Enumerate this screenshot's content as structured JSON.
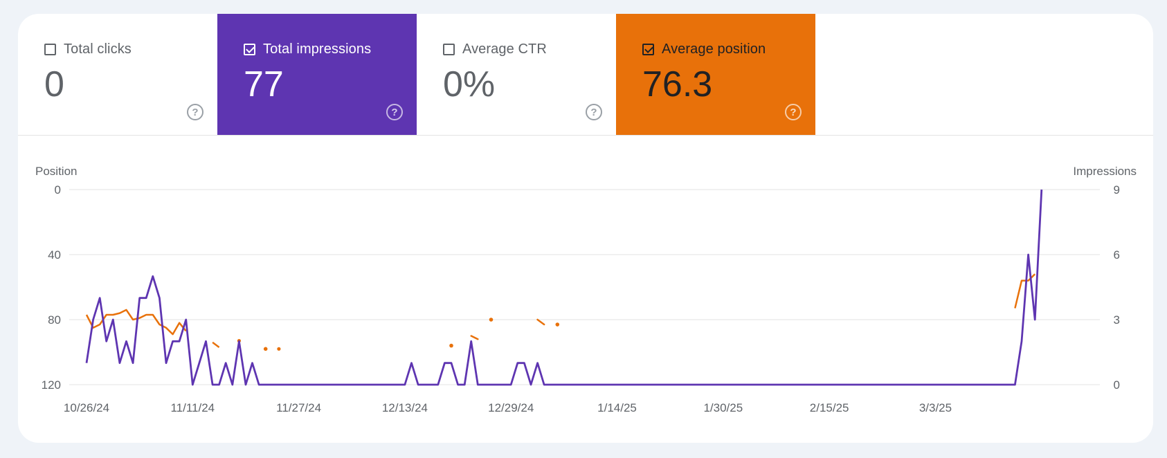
{
  "metrics": {
    "clicks": {
      "label": "Total clicks",
      "value": "0",
      "checked": false
    },
    "impressions": {
      "label": "Total impressions",
      "value": "77",
      "checked": true
    },
    "ctr": {
      "label": "Average CTR",
      "value": "0%",
      "checked": false
    },
    "position": {
      "label": "Average position",
      "value": "76.3",
      "checked": true
    },
    "help_glyph": "?"
  },
  "colors": {
    "impressions": "#5e35b1",
    "position": "#e8710a",
    "grid": "#e3e3e3",
    "text": "#5f6368"
  },
  "chart_data": {
    "type": "line",
    "x_range": [
      "10/26/24",
      "3/28/25"
    ],
    "x_ticks": [
      "10/26/24",
      "11/11/24",
      "11/27/24",
      "12/13/24",
      "12/29/24",
      "1/14/25",
      "1/30/25",
      "2/15/25",
      "3/3/25"
    ],
    "y_left": {
      "label": "Position",
      "ticks": [
        0,
        40,
        80,
        120
      ],
      "range": [
        0,
        120
      ],
      "inverted": true
    },
    "y_right": {
      "label": "Impressions",
      "ticks": [
        0,
        3,
        6,
        9
      ],
      "range": [
        0,
        9
      ]
    },
    "series": [
      {
        "name": "Impressions",
        "axis": "right",
        "color": "#5e35b1",
        "start_date": "10/26/24",
        "values": [
          1,
          3,
          4,
          2,
          3,
          1,
          2,
          1,
          4,
          4,
          5,
          4,
          1,
          2,
          2,
          3,
          0,
          1,
          2,
          0,
          0,
          1,
          0,
          2,
          0,
          1,
          0,
          0,
          0,
          0,
          0,
          0,
          0,
          0,
          0,
          0,
          0,
          0,
          0,
          0,
          0,
          0,
          0,
          0,
          0,
          0,
          0,
          0,
          0,
          1,
          0,
          0,
          0,
          0,
          1,
          1,
          0,
          0,
          2,
          0,
          0,
          0,
          0,
          0,
          0,
          1,
          1,
          0,
          1,
          0,
          0,
          0,
          0,
          0,
          0,
          0,
          0,
          0,
          0,
          0,
          0,
          0,
          0,
          0,
          0,
          0,
          0,
          0,
          0,
          0,
          0,
          0,
          0,
          0,
          0,
          0,
          0,
          0,
          0,
          0,
          0,
          0,
          0,
          0,
          0,
          0,
          0,
          0,
          0,
          0,
          0,
          0,
          0,
          0,
          0,
          0,
          0,
          0,
          0,
          0,
          0,
          0,
          0,
          0,
          0,
          0,
          0,
          0,
          0,
          0,
          0,
          0,
          0,
          0,
          0,
          0,
          0,
          0,
          0,
          0,
          0,
          2,
          6,
          3,
          9
        ]
      },
      {
        "name": "Position",
        "axis": "left",
        "color": "#e8710a",
        "start_date": "10/26/24",
        "values": [
          77,
          85,
          83,
          77,
          77,
          76,
          74,
          80,
          79,
          77,
          77,
          83,
          85,
          89,
          82,
          87,
          null,
          null,
          null,
          94,
          97,
          null,
          null,
          93,
          null,
          null,
          null,
          null,
          null,
          98,
          null,
          null,
          null,
          null,
          null,
          null,
          null,
          null,
          null,
          null,
          null,
          null,
          null,
          null,
          null,
          null,
          null,
          null,
          null,
          null,
          null,
          null,
          null,
          null,
          null,
          null,
          null,
          null,
          null,
          null,
          null,
          null,
          null,
          null,
          null,
          null,
          null,
          null,
          null,
          null,
          null,
          null,
          null,
          null,
          null,
          null,
          null,
          null,
          null,
          null,
          null,
          null,
          null,
          null,
          null,
          null,
          null,
          null,
          null,
          null,
          null,
          null,
          null,
          null,
          null,
          null,
          null,
          null,
          null,
          null,
          null,
          null,
          null,
          null,
          null,
          null,
          null,
          null,
          null,
          null,
          null,
          null,
          null,
          null,
          null,
          null,
          null,
          null,
          null,
          null,
          null,
          null,
          null,
          null,
          null,
          null,
          null,
          null,
          null,
          null,
          null,
          null,
          null,
          null,
          null,
          null,
          null,
          null,
          null,
          null,
          73,
          56,
          56,
          52
        ]
      }
    ],
    "isolated_position_points": [
      {
        "x": "11/22/24",
        "y": 98
      },
      {
        "x": "12/20/24",
        "y": 96
      },
      {
        "x": "12/23/24",
        "y": 90,
        "x2": "12/24/24",
        "y2": 92
      },
      {
        "x": "12/26/24",
        "y": 80
      },
      {
        "x": "1/2/25",
        "y": 80,
        "x2": "1/3/25",
        "y2": 83
      },
      {
        "x": "1/5/25",
        "y": 83
      }
    ],
    "grid": true
  }
}
